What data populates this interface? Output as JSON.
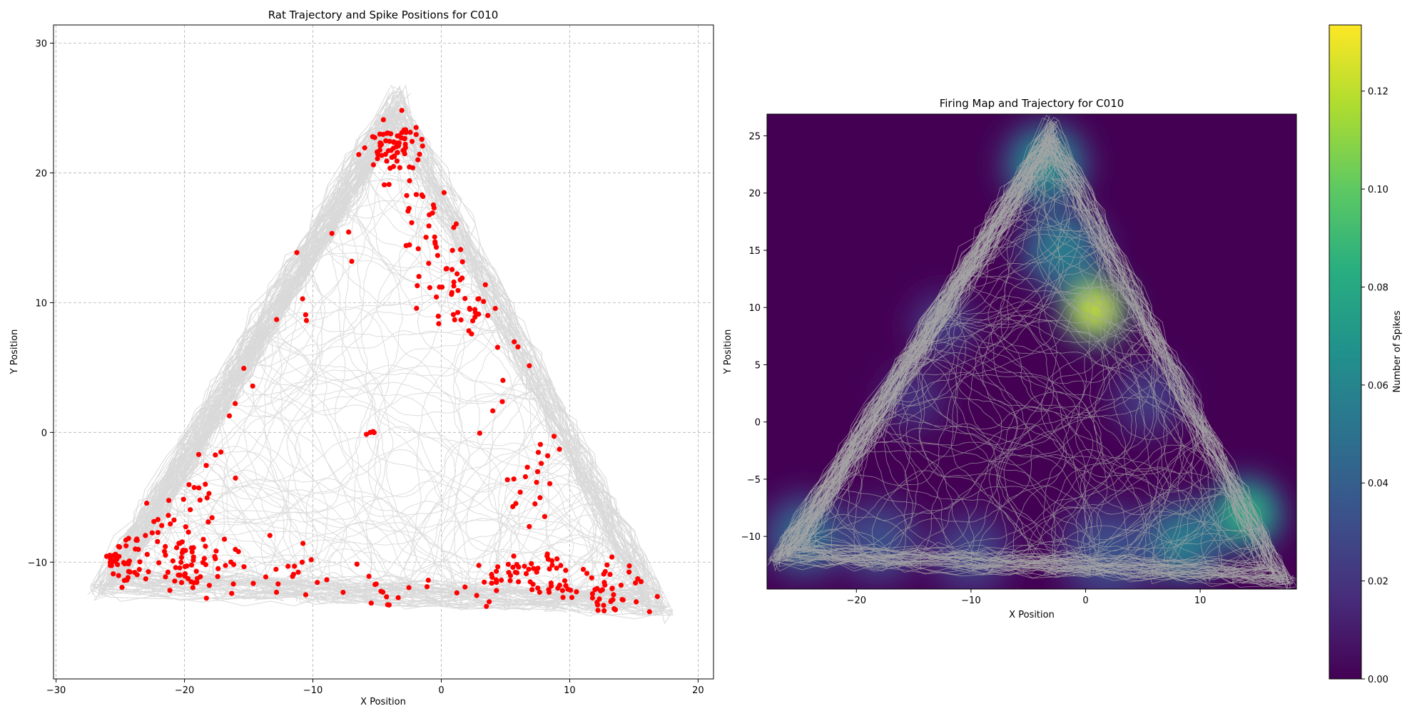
{
  "chart_data": [
    {
      "type": "scatter",
      "title": "Rat Trajectory and Spike Positions for  C010",
      "xlabel": "X Position",
      "ylabel": "Y Position",
      "xlim": [
        -30.2,
        21.2
      ],
      "ylim": [
        -19.0,
        31.4
      ],
      "xticks": [
        -30,
        -20,
        -10,
        0,
        10,
        20
      ],
      "yticks": [
        -10,
        0,
        10,
        20,
        30
      ],
      "grid": true,
      "trajectory_color": "#d9d9d9",
      "spike_color": "#ff0000",
      "arena_triangle": [
        [
          -27.5,
          -12.5
        ],
        [
          -3.5,
          27.0
        ],
        [
          18.2,
          -14.2
        ]
      ],
      "spike_clusters": [
        {
          "x": -3.6,
          "y": 22.0,
          "sx": 1.2,
          "sy": 1.2,
          "n": 70
        },
        {
          "x": -1.8,
          "y": 16.5,
          "sx": 1.0,
          "sy": 2.2,
          "n": 25
        },
        {
          "x": 0.8,
          "y": 12.0,
          "sx": 1.6,
          "sy": 1.8,
          "n": 25
        },
        {
          "x": 2.0,
          "y": 9.2,
          "sx": 1.3,
          "sy": 1.0,
          "n": 20
        },
        {
          "x": 4.5,
          "y": 4.0,
          "sx": 1.0,
          "sy": 2.5,
          "n": 8
        },
        {
          "x": 7.0,
          "y": -4.5,
          "sx": 1.2,
          "sy": 2.5,
          "n": 20
        },
        {
          "x": 13.5,
          "y": -12.0,
          "sx": 1.5,
          "sy": 1.0,
          "n": 40
        },
        {
          "x": 8.5,
          "y": -11.0,
          "sx": 1.6,
          "sy": 1.2,
          "n": 35
        },
        {
          "x": 4.5,
          "y": -11.5,
          "sx": 2.0,
          "sy": 1.0,
          "n": 30
        },
        {
          "x": -4.0,
          "y": -12.2,
          "sx": 2.0,
          "sy": 0.8,
          "n": 15
        },
        {
          "x": -11.5,
          "y": -10.5,
          "sx": 1.8,
          "sy": 1.0,
          "n": 15
        },
        {
          "x": -17.0,
          "y": -10.5,
          "sx": 1.5,
          "sy": 1.2,
          "n": 20
        },
        {
          "x": -20.0,
          "y": -10.5,
          "sx": 1.2,
          "sy": 1.2,
          "n": 40
        },
        {
          "x": -25.0,
          "y": -10.0,
          "sx": 1.1,
          "sy": 1.0,
          "n": 45
        },
        {
          "x": -21.5,
          "y": -7.5,
          "sx": 1.2,
          "sy": 1.2,
          "n": 20
        },
        {
          "x": -18.5,
          "y": -3.5,
          "sx": 1.0,
          "sy": 1.5,
          "n": 15
        },
        {
          "x": -15.5,
          "y": 3.0,
          "sx": 0.8,
          "sy": 2.0,
          "n": 4
        },
        {
          "x": -11.0,
          "y": 10.0,
          "sx": 1.0,
          "sy": 1.5,
          "n": 5
        },
        {
          "x": -5.5,
          "y": 0.0,
          "sx": 0.15,
          "sy": 0.15,
          "n": 4
        },
        {
          "x": -8.0,
          "y": 15.0,
          "sx": 0.8,
          "sy": 1.0,
          "n": 3
        }
      ]
    },
    {
      "type": "heatmap",
      "title": "Firing Map and Trajectory for  C010",
      "xlabel": "X Position",
      "ylabel": "Y Position",
      "xlim": [
        -27.8,
        18.4
      ],
      "ylim": [
        -14.6,
        26.9
      ],
      "xticks": [
        -20,
        -10,
        0,
        10
      ],
      "yticks": [
        -10,
        -5,
        0,
        5,
        10,
        15,
        20,
        25
      ],
      "colormap": "viridis",
      "trajectory_color": "#a6a6a6",
      "colorbar": {
        "label": "Number of Spikes",
        "range": [
          0.0,
          0.1335
        ],
        "ticks": [
          "0.00",
          "0.02",
          "0.04",
          "0.06",
          "0.08",
          "0.10",
          "0.12"
        ]
      },
      "hotspots": [
        {
          "x": 0.8,
          "y": 9.8,
          "value": 0.1335,
          "sigma": 2.0
        },
        {
          "x": 14.0,
          "y": -8.0,
          "value": 0.09,
          "sigma": 2.2
        },
        {
          "x": -3.5,
          "y": 22.5,
          "value": 0.07,
          "sigma": 2.5
        },
        {
          "x": -2.0,
          "y": 15.0,
          "value": 0.06,
          "sigma": 2.5
        },
        {
          "x": 8.5,
          "y": -10.5,
          "value": 0.06,
          "sigma": 2.5
        },
        {
          "x": -24.5,
          "y": -10.0,
          "value": 0.05,
          "sigma": 2.5
        },
        {
          "x": -18.0,
          "y": -10.5,
          "value": 0.035,
          "sigma": 2.5
        },
        {
          "x": -10.0,
          "y": -11.5,
          "value": 0.03,
          "sigma": 2.5
        },
        {
          "x": 2.0,
          "y": -11.5,
          "value": 0.035,
          "sigma": 3.0
        },
        {
          "x": -12.5,
          "y": 8.5,
          "value": 0.025,
          "sigma": 2.0
        },
        {
          "x": 5.5,
          "y": 2.0,
          "value": 0.025,
          "sigma": 2.2
        },
        {
          "x": -15.0,
          "y": 2.0,
          "value": 0.02,
          "sigma": 2.0
        }
      ]
    }
  ]
}
